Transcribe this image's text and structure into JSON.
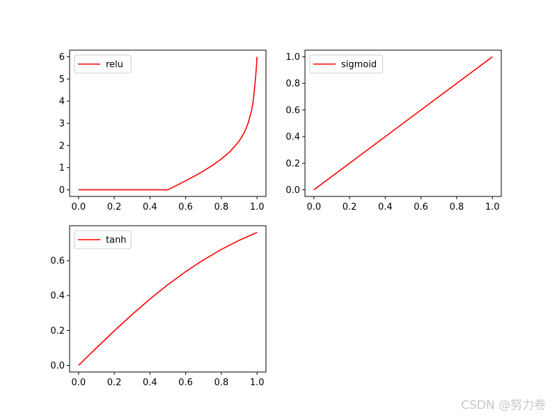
{
  "watermark": "CSDN @努力卷",
  "line_color": "#ff0000",
  "chart_data": [
    {
      "type": "line",
      "legend_position": "upper-left",
      "grid": false,
      "xlim": [
        -0.05,
        1.05
      ],
      "ylim": [
        -0.3,
        6.3
      ],
      "x_ticks": [
        0.0,
        0.2,
        0.4,
        0.6,
        0.8,
        1.0
      ],
      "x_tick_labels": [
        "0.0",
        "0.2",
        "0.4",
        "0.6",
        "0.8",
        "1.0"
      ],
      "y_ticks": [
        0,
        1,
        2,
        3,
        4,
        5,
        6
      ],
      "y_tick_labels": [
        "0",
        "1",
        "2",
        "3",
        "4",
        "5",
        "6"
      ],
      "series": [
        {
          "name": "relu",
          "x": [
            0.0,
            0.1,
            0.2,
            0.3,
            0.4,
            0.5,
            0.55,
            0.6,
            0.65,
            0.7,
            0.75,
            0.8,
            0.85,
            0.9,
            0.93,
            0.95,
            0.97,
            0.98,
            0.99,
            0.995,
            1.0
          ],
          "y": [
            0,
            0,
            0,
            0,
            0,
            0,
            0.2,
            0.41,
            0.62,
            0.85,
            1.1,
            1.39,
            1.73,
            2.2,
            2.6,
            3.0,
            3.6,
            4.1,
            4.9,
            5.4,
            6.0
          ]
        }
      ]
    },
    {
      "type": "line",
      "legend_position": "upper-left",
      "grid": false,
      "xlim": [
        -0.05,
        1.05
      ],
      "ylim": [
        -0.05,
        1.05
      ],
      "x_ticks": [
        0.0,
        0.2,
        0.4,
        0.6,
        0.8,
        1.0
      ],
      "x_tick_labels": [
        "0.0",
        "0.2",
        "0.4",
        "0.6",
        "0.8",
        "1.0"
      ],
      "y_ticks": [
        0.0,
        0.2,
        0.4,
        0.6,
        0.8,
        1.0
      ],
      "y_tick_labels": [
        "0.0",
        "0.2",
        "0.4",
        "0.6",
        "0.8",
        "1.0"
      ],
      "series": [
        {
          "name": "sigmoid",
          "x": [
            0.0,
            0.2,
            0.4,
            0.6,
            0.8,
            1.0
          ],
          "y": [
            0.0,
            0.2,
            0.4,
            0.6,
            0.8,
            1.0
          ]
        }
      ]
    },
    {
      "type": "line",
      "legend_position": "upper-left",
      "grid": false,
      "xlim": [
        -0.05,
        1.05
      ],
      "ylim": [
        -0.038,
        0.8
      ],
      "x_ticks": [
        0.0,
        0.2,
        0.4,
        0.6,
        0.8,
        1.0
      ],
      "x_tick_labels": [
        "0.0",
        "0.2",
        "0.4",
        "0.6",
        "0.8",
        "1.0"
      ],
      "y_ticks": [
        0.0,
        0.2,
        0.4,
        0.6
      ],
      "y_tick_labels": [
        "0.0",
        "0.2",
        "0.4",
        "0.6"
      ],
      "series": [
        {
          "name": "tanh",
          "x": [
            0.0,
            0.1,
            0.2,
            0.3,
            0.4,
            0.5,
            0.6,
            0.7,
            0.8,
            0.9,
            1.0
          ],
          "y": [
            0.0,
            0.0997,
            0.1974,
            0.2913,
            0.3799,
            0.4621,
            0.537,
            0.6044,
            0.664,
            0.7163,
            0.7616
          ]
        }
      ]
    }
  ]
}
